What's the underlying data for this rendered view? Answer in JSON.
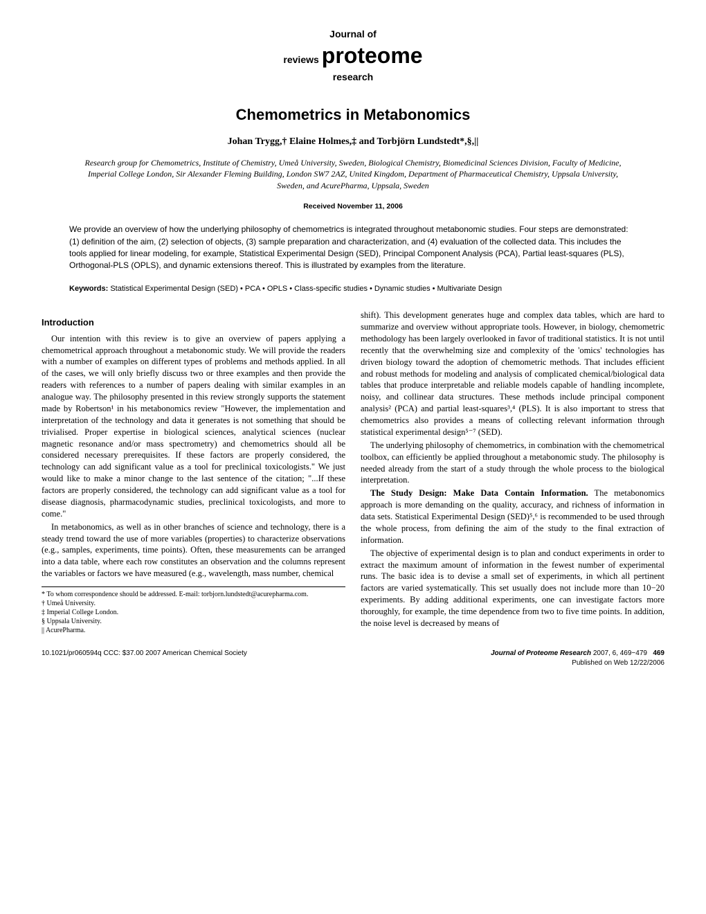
{
  "journal_logo": {
    "top": "Journal of",
    "reviews": "reviews",
    "main": "proteome",
    "bottom": "research"
  },
  "article": {
    "title": "Chemometrics in Metabonomics",
    "authors": "Johan Trygg,† Elaine Holmes,‡ and Torbjörn Lundstedt*,§,||",
    "affiliations": "Research group for Chemometrics, Institute of Chemistry, Umeå University, Sweden, Biological Chemistry, Biomedicinal Sciences Division, Faculty of Medicine, Imperial College London, Sir Alexander Fleming Building, London SW7 2AZ, United Kingdom, Department of Pharmaceutical Chemistry, Uppsala University, Sweden, and AcurePharma, Uppsala, Sweden",
    "received": "Received November 11, 2006",
    "abstract": "We provide an overview of how the underlying philosophy of chemometrics is integrated throughout metabonomic studies. Four steps are demonstrated: (1) definition of the aim, (2) selection of objects, (3) sample preparation and characterization, and (4) evaluation of the collected data. This includes the tools applied for linear modeling, for example, Statistical Experimental Design (SED), Principal Component Analysis (PCA), Partial least-squares (PLS), Orthogonal-PLS (OPLS), and dynamic extensions thereof. This is illustrated by examples from the literature.",
    "keywords_label": "Keywords:",
    "keywords": "Statistical Experimental Design (SED) • PCA • OPLS • Class-specific studies • Dynamic studies • Multivariate Design"
  },
  "sections": {
    "introduction_heading": "Introduction",
    "p1": "Our intention with this review is to give an overview of papers applying a chemometrical approach throughout a metabonomic study. We will provide the readers with a number of examples on different types of problems and methods applied. In all of the cases, we will only briefly discuss two or three examples and then provide the readers with references to a number of papers dealing with similar examples in an analogue way. The philosophy presented in this review strongly supports the statement made by Robertson¹ in his metabonomics review \"However, the implementation and interpretation of the technology and data it generates is not something that should be trivialised. Proper expertise in biological sciences, analytical sciences (nuclear magnetic resonance and/or mass spectrometry) and chemometrics should all be considered necessary prerequisites. If these factors are properly considered, the technology can add significant value as a tool for preclinical toxicologists.\" We just would like to make a minor change to the last sentence of the citation; \"...If these factors are properly considered, the technology can add significant value as a tool for disease diagnosis, pharmacodynamic studies, preclinical toxicologists, and more to come.\"",
    "p2": "In metabonomics, as well as in other branches of science and technology, there is a steady trend toward the use of more variables (properties) to characterize observations (e.g., samples, experiments, time points). Often, these measurements can be arranged into a data table, where each row constitutes an observation and the columns represent the variables or factors we have measured (e.g., wavelength, mass number, chemical",
    "p3": "shift). This development generates huge and complex data tables, which are hard to summarize and overview without appropriate tools. However, in biology, chemometric methodology has been largely overlooked in favor of traditional statistics. It is not until recently that the overwhelming size and complexity of the 'omics' technologies has driven biology toward the adoption of chemometric methods. That includes efficient and robust methods for modeling and analysis of complicated chemical/biological data tables that produce interpretable and reliable models capable of handling incomplete, noisy, and collinear data structures. These methods include principal component analysis² (PCA) and partial least-squares³,⁴ (PLS). It is also important to stress that chemometrics also provides a means of collecting relevant information through statistical experimental design⁵⁻⁷ (SED).",
    "p4": "The underlying philosophy of chemometrics, in combination with the chemometrical toolbox, can efficiently be applied throughout a metabonomic study. The philosophy is needed already from the start of a study through the whole process to the biological interpretation.",
    "p5_bold": "The Study Design: Make Data Contain Information.",
    "p5_rest": " The metabonomics approach is more demanding on the quality, accuracy, and richness of information in data sets. Statistical Experimental Design (SED)⁵,⁶ is recommended to be used through the whole process, from defining the aim of the study to the final extraction of information.",
    "p6": "The objective of experimental design is to plan and conduct experiments in order to extract the maximum amount of information in the fewest number of experimental runs. The basic idea is to devise a small set of experiments, in which all pertinent factors are varied systematically. This set usually does not include more than 10−20 experiments. By adding additional experiments, one can investigate factors more thoroughly, for example, the time dependence from two to five time points. In addition, the noise level is decreased by means of"
  },
  "footnotes": {
    "fn1": "* To whom correspondence should be addressed. E-mail: torbjorn.lundstedt@acurepharma.com.",
    "fn2": "† Umeå University.",
    "fn3": "‡ Imperial College London.",
    "fn4": "§ Uppsala University.",
    "fn5": "|| AcurePharma."
  },
  "footer": {
    "doi": "10.1021/pr060594q CCC: $37.00",
    "copyright": "     2007 American Chemical Society",
    "journal": "Journal of Proteome Research",
    "citation": " 2007, 6, 469−479",
    "page": "469",
    "published": "Published on Web 12/22/2006"
  }
}
